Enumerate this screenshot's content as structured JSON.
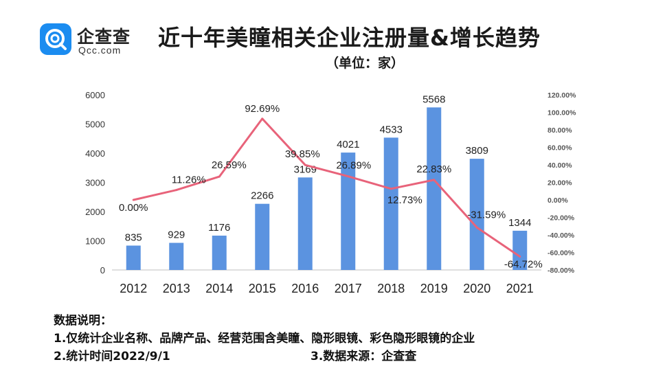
{
  "logo": {
    "name": "企查查",
    "sub": "Qcc.com"
  },
  "title": "近十年美瞳相关企业注册量&增长趋势",
  "subtitle": "（单位：家）",
  "notes": {
    "heading": "数据说明：",
    "line1": "1.仅统计企业名称、品牌产品、经营范围含美瞳、隐形眼镜、彩色隐形眼镜的企业",
    "line2": "2.统计时间2022/9/1",
    "source": "3.数据来源：企查查"
  },
  "colors": {
    "bar": "#5b93e0",
    "line": "#e8637a",
    "brand": "#1b8cf0"
  },
  "chart_data": {
    "type": "bar",
    "categories": [
      "2012",
      "2013",
      "2014",
      "2015",
      "2016",
      "2017",
      "2018",
      "2019",
      "2020",
      "2021"
    ],
    "series": [
      {
        "type": "bar",
        "axis": "left",
        "values": [
          835,
          929,
          1176,
          2266,
          3169,
          4021,
          4533,
          5568,
          3809,
          1344
        ],
        "labels": [
          "835",
          "929",
          "1176",
          "2266",
          "3169",
          "4021",
          "4533",
          "5568",
          "3809",
          "1344"
        ]
      },
      {
        "type": "line",
        "axis": "right",
        "values": [
          0.0,
          11.26,
          26.59,
          92.69,
          39.85,
          26.89,
          12.73,
          22.83,
          -31.59,
          -64.72
        ],
        "labels": [
          "0.00%",
          "11.26%",
          "26.59%",
          "92.69%",
          "39.85%",
          "26.89%",
          "12.73%",
          "22.83%",
          "-31.59%",
          "-64.72%"
        ]
      }
    ],
    "y_left": {
      "range": [
        0,
        6000
      ],
      "ticks": [
        "0",
        "1000",
        "2000",
        "3000",
        "4000",
        "5000",
        "6000"
      ]
    },
    "y_right": {
      "range": [
        -80,
        120
      ],
      "ticks": [
        "-80.00%",
        "-60.00%",
        "-40.00%",
        "-20.00%",
        "0.00%",
        "20.00%",
        "40.00%",
        "60.00%",
        "80.00%",
        "100.00%",
        "120.00%"
      ]
    },
    "grid": false
  }
}
